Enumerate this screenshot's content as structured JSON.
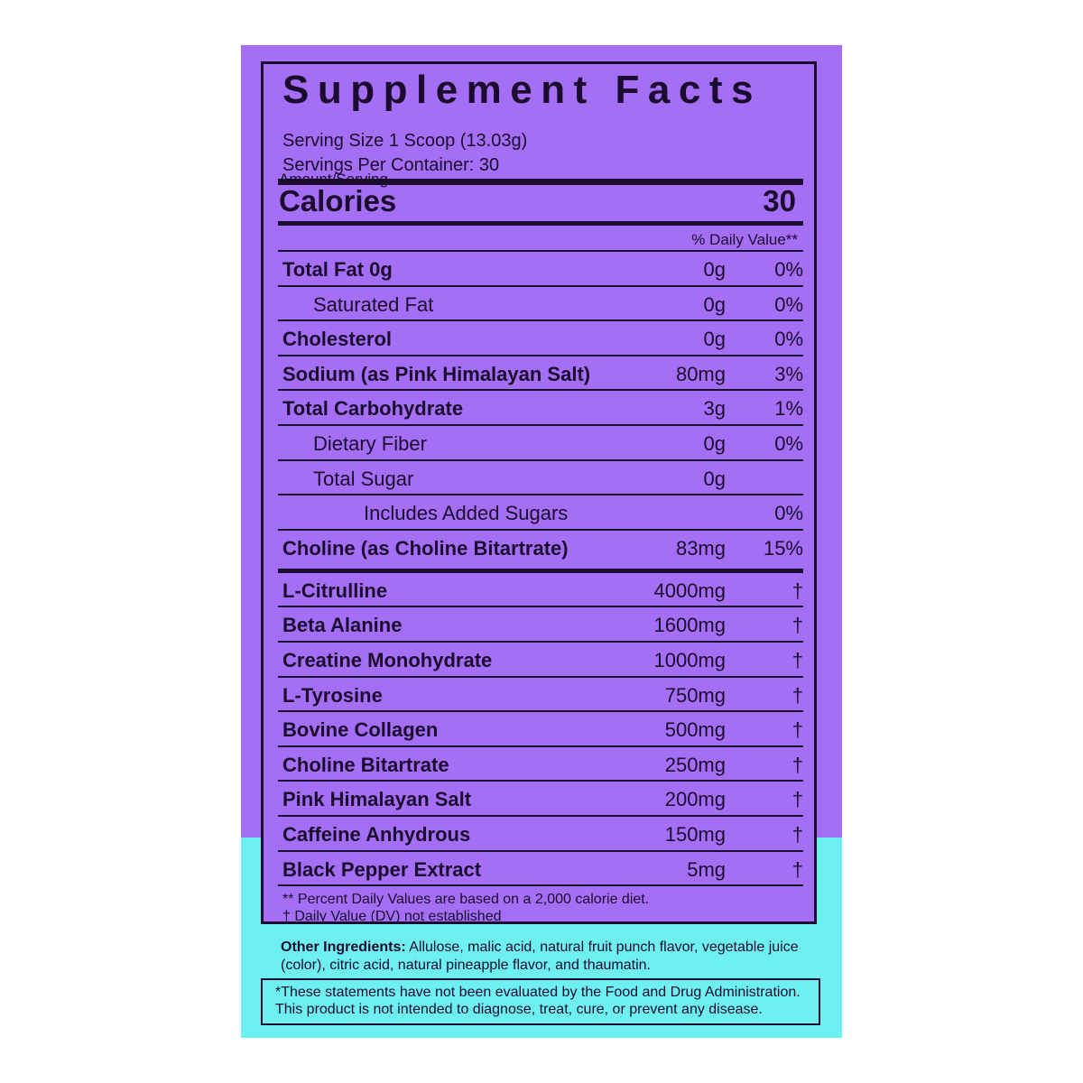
{
  "title": "Supplement Facts",
  "serving_size": "Serving Size 1 Scoop (13.03g)",
  "servings_per_container": "Servings Per Container: 30",
  "amount_per_serving": "Amount/Serving",
  "calories_label": "Calories",
  "calories_value": "30",
  "daily_value_header": "% Daily Value**",
  "nutrients": [
    {
      "name": "Total Fat 0g",
      "amount": "0g",
      "dv": "0%"
    },
    {
      "name": "Saturated Fat",
      "amount": "0g",
      "dv": "0%"
    },
    {
      "name": "Cholesterol",
      "amount": "0g",
      "dv": "0%"
    },
    {
      "name": "Sodium (as Pink Himalayan Salt)",
      "amount": "80mg",
      "dv": "3%"
    },
    {
      "name": "Total Carbohydrate",
      "amount": "3g",
      "dv": "1%"
    },
    {
      "name": "Dietary Fiber",
      "amount": "0g",
      "dv": "0%"
    },
    {
      "name": "Total Sugar",
      "amount": "0g",
      "dv": ""
    },
    {
      "name": "Includes Added Sugars",
      "amount": "",
      "dv": "0%"
    },
    {
      "name": "Choline (as Choline Bitartrate)",
      "amount": "83mg",
      "dv": "15%"
    }
  ],
  "ingredients": [
    {
      "name": "L-Citrulline",
      "amount": "4000mg",
      "dv": "†"
    },
    {
      "name": "Beta Alanine",
      "amount": "1600mg",
      "dv": "†"
    },
    {
      "name": "Creatine Monohydrate",
      "amount": "1000mg",
      "dv": "†"
    },
    {
      "name": "L-Tyrosine",
      "amount": "750mg",
      "dv": "†"
    },
    {
      "name": "Bovine Collagen",
      "amount": "500mg",
      "dv": "†"
    },
    {
      "name": "Choline Bitartrate",
      "amount": "250mg",
      "dv": "†"
    },
    {
      "name": "Pink Himalayan Salt",
      "amount": "200mg",
      "dv": "†"
    },
    {
      "name": "Caffeine Anhydrous",
      "amount": "150mg",
      "dv": "†"
    },
    {
      "name": "Black Pepper Extract",
      "amount": "5mg",
      "dv": "†"
    }
  ],
  "footnote_dv": "** Percent Daily Values are based on a 2,000 calorie diet.",
  "footnote_dagger": "† Daily Value (DV) not established",
  "other_ingredients_label": "Other Ingredients:",
  "other_ingredients": " Allulose, malic acid, natural fruit punch flavor, vegetable juice (color), citric acid, natural pineapple flavor, and thaumatin.",
  "disclaimer_1": "*These statements have not been evaluated by the Food and Drug Administration.",
  "disclaimer_2": "This product is not intended to diagnose, treat, cure, or prevent any disease.",
  "colors": {
    "purple": "#a56ff5",
    "cyan": "#6ef0f0",
    "ink": "#1b0b2e"
  }
}
